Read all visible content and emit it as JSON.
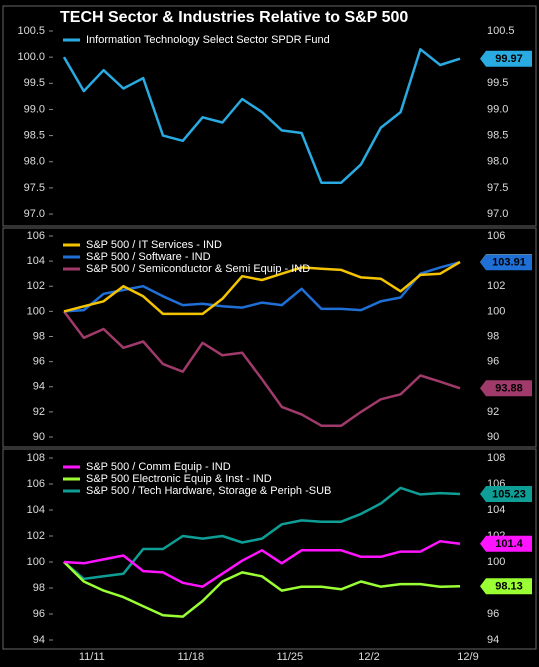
{
  "chart_data": [
    {
      "type": "line",
      "title": "TECH Sector & Industries Relative to S&P 500",
      "series": [
        {
          "name": "Information Technology Select Sector SPDR Fund",
          "color": "#29abe2",
          "values": [
            100.0,
            99.35,
            99.75,
            99.4,
            99.6,
            98.5,
            98.4,
            98.85,
            98.75,
            99.2,
            98.95,
            98.6,
            98.55,
            97.6,
            97.6,
            97.95,
            98.65,
            98.95,
            100.15,
            99.85,
            99.97
          ]
        }
      ],
      "ylim": [
        96.8,
        100.8
      ],
      "yticks": [
        {
          "value": 97,
          "label": "97.0"
        },
        97.5,
        {
          "value": 98,
          "label": "98.0"
        },
        98.5,
        {
          "value": 99,
          "label": "99.0"
        },
        99.5,
        {
          "value": 100,
          "label": "100.0"
        },
        100.5
      ]
    },
    {
      "type": "line",
      "series": [
        {
          "name": "S&P 500 / IT Services - IND",
          "color": "#f5c400",
          "values": [
            100.0,
            100.4,
            100.8,
            102.0,
            101.2,
            99.8,
            99.8,
            99.8,
            101.0,
            102.8,
            102.5,
            103.0,
            103.5,
            103.4,
            103.3,
            102.7,
            102.6,
            101.6,
            102.9,
            103.0,
            103.93
          ]
        },
        {
          "name": "S&P 500 / Software - IND",
          "color": "#1f6fd6",
          "values": [
            100.0,
            100.1,
            101.4,
            101.7,
            102.0,
            101.2,
            100.5,
            100.6,
            100.4,
            100.3,
            100.7,
            100.5,
            101.8,
            100.2,
            100.2,
            100.1,
            100.8,
            101.1,
            103.0,
            103.5,
            103.91
          ]
        },
        {
          "name": "S&P 500 / Semiconductor & Semi Equip - IND",
          "color": "#a03a6a",
          "values": [
            100.0,
            97.9,
            98.6,
            97.1,
            97.6,
            95.8,
            95.2,
            97.5,
            96.5,
            96.7,
            94.6,
            92.4,
            91.8,
            90.9,
            90.9,
            92.0,
            93.0,
            93.4,
            94.9,
            94.4,
            93.88
          ]
        }
      ],
      "ylim": [
        89.5,
        106.5
      ],
      "yticks": [
        90,
        92,
        94,
        96,
        98,
        100,
        102,
        104,
        106
      ]
    },
    {
      "type": "line",
      "categories": [
        null,
        "11/11",
        null,
        null,
        null,
        null,
        "11/18",
        null,
        null,
        null,
        null,
        "11/25",
        null,
        null,
        null,
        "12/2",
        null,
        null,
        null,
        null,
        "12/9"
      ],
      "series": [
        {
          "name": "S&P 500 / Comm Equip - IND",
          "color": "#ff14ff",
          "values": [
            100.0,
            99.9,
            100.2,
            100.5,
            99.3,
            99.2,
            98.4,
            98.1,
            99.1,
            100.1,
            100.9,
            99.9,
            100.9,
            100.9,
            100.9,
            100.4,
            100.4,
            100.8,
            100.8,
            101.6,
            101.4
          ]
        },
        {
          "name": "S&P 500 Electronic Equip & Inst - IND",
          "color": "#9aff33",
          "values": [
            100.0,
            98.5,
            97.8,
            97.3,
            96.6,
            95.9,
            95.8,
            97.0,
            98.5,
            99.2,
            98.9,
            97.8,
            98.1,
            98.1,
            97.9,
            98.5,
            98.1,
            98.3,
            98.3,
            98.1,
            98.13
          ]
        },
        {
          "name": "S&P 500 / Tech Hardware, Storage & Periph -SUB",
          "color": "#0f9e96",
          "values": [
            100.0,
            98.7,
            98.9,
            99.1,
            101.0,
            101.0,
            102.0,
            101.8,
            102.0,
            101.5,
            101.8,
            102.9,
            103.2,
            103.1,
            103.1,
            103.7,
            104.5,
            105.7,
            105.2,
            105.3,
            105.23
          ]
        }
      ],
      "ylim": [
        93.5,
        108.5
      ],
      "yticks": [
        94,
        96,
        98,
        100,
        102,
        104,
        106,
        108
      ]
    }
  ]
}
